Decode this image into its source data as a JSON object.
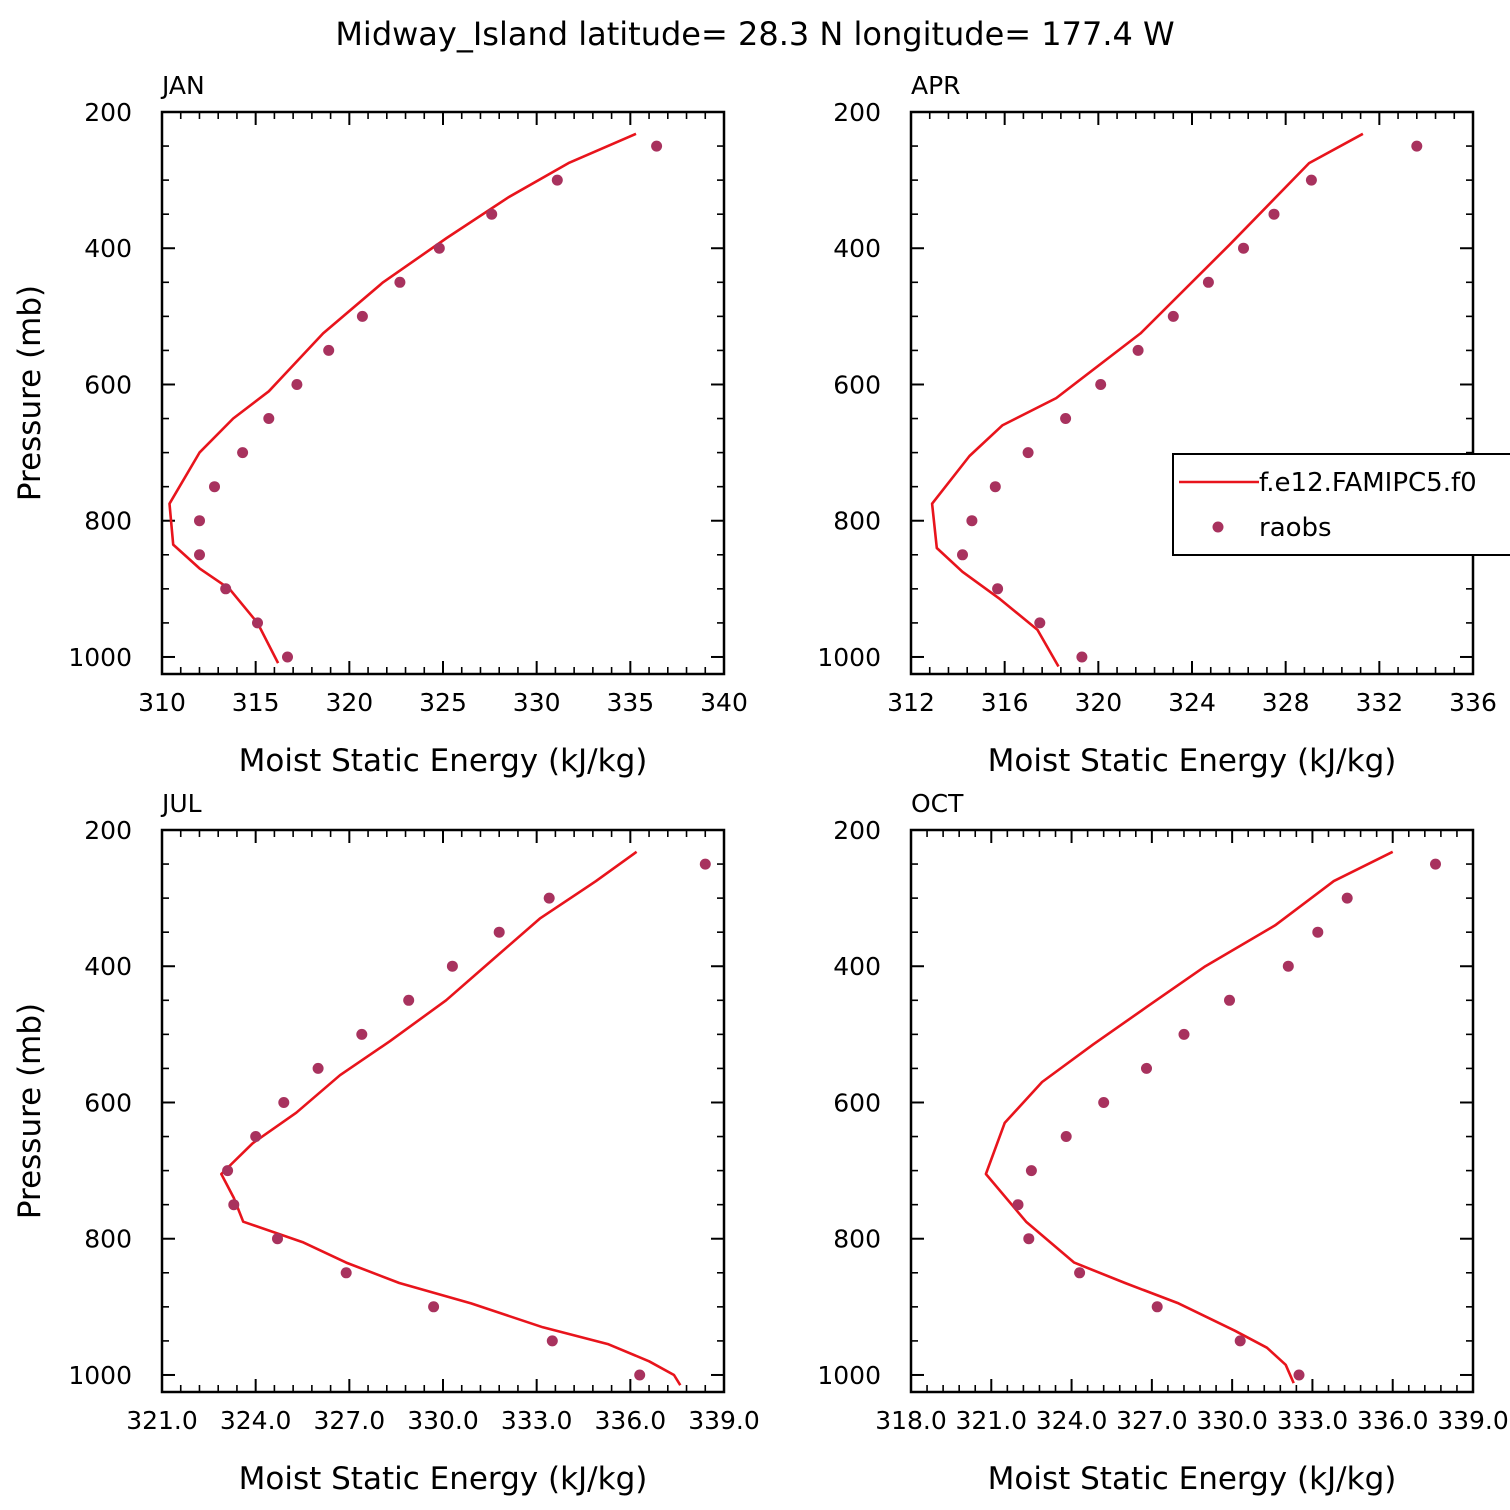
{
  "figure_title": "Midway_Island  latitude= 28.3 N longitude= 177.4 W",
  "colors": {
    "model_line": "#e8141c",
    "obs_marker": "#a8325e"
  },
  "legend": {
    "panel": "APR",
    "entries": [
      {
        "label": "f.e12.FAMIPC5.f0",
        "kind": "line"
      },
      {
        "label": "raobs",
        "kind": "marker"
      }
    ]
  },
  "chart_data": [
    {
      "type": "line",
      "title": "JAN",
      "xlabel": "Moist Static Energy (kJ/kg)",
      "ylabel": "Pressure (mb)",
      "xlim": [
        310,
        340
      ],
      "ylim": [
        1025,
        200
      ],
      "xticks": [
        310,
        315,
        320,
        325,
        330,
        335,
        340
      ],
      "xtick_labels": [
        "310",
        "315",
        "320",
        "325",
        "330",
        "335",
        "340"
      ],
      "yticks": [
        200,
        400,
        600,
        800,
        1000
      ],
      "ytick_labels": [
        "200",
        "400",
        "600",
        "800",
        "1000"
      ],
      "series": [
        {
          "kind": "line",
          "x": [
            335.3,
            331.7,
            328.5,
            325.2,
            321.8,
            318.6,
            315.7,
            313.8,
            312.0,
            310.4,
            310.6,
            312.0,
            313.6,
            315.1,
            316.2
          ],
          "y": [
            232,
            275,
            325,
            385,
            450,
            525,
            610,
            650,
            700,
            775,
            835,
            870,
            900,
            950,
            1009
          ]
        },
        {
          "kind": "scatter",
          "x": [
            336.4,
            331.1,
            327.6,
            324.8,
            322.7,
            320.7,
            318.9,
            317.2,
            315.7,
            314.3,
            312.8,
            312.0,
            312.0,
            313.4,
            315.1,
            316.7
          ],
          "y": [
            250,
            300,
            350,
            400,
            450,
            500,
            550,
            600,
            650,
            700,
            750,
            800,
            850,
            900,
            950,
            1000
          ]
        }
      ]
    },
    {
      "type": "line",
      "title": "APR",
      "xlabel": "Moist Static Energy (kJ/kg)",
      "ylabel": "",
      "xlim": [
        312,
        336
      ],
      "ylim": [
        1025,
        200
      ],
      "xticks": [
        312,
        316,
        320,
        324,
        328,
        332,
        336
      ],
      "xtick_labels": [
        "312",
        "316",
        "320",
        "324",
        "328",
        "332",
        "336"
      ],
      "yticks": [
        200,
        400,
        600,
        800,
        1000
      ],
      "ytick_labels": [
        "200",
        "400",
        "600",
        "800",
        "1000"
      ],
      "series": [
        {
          "kind": "line",
          "x": [
            331.3,
            329.0,
            325.6,
            321.8,
            318.2,
            315.9,
            314.5,
            312.9,
            313.1,
            314.2,
            315.8,
            317.4,
            318.3
          ],
          "y": [
            232,
            275,
            395,
            525,
            620,
            660,
            705,
            775,
            840,
            875,
            915,
            960,
            1014
          ]
        },
        {
          "kind": "scatter",
          "x": [
            333.6,
            329.1,
            327.5,
            326.2,
            324.7,
            323.2,
            321.7,
            320.1,
            318.6,
            317.0,
            315.6,
            314.6,
            314.2,
            315.7,
            317.5,
            319.3
          ],
          "y": [
            250,
            300,
            350,
            400,
            450,
            500,
            550,
            600,
            650,
            700,
            750,
            800,
            850,
            900,
            950,
            1000
          ]
        }
      ]
    },
    {
      "type": "line",
      "title": "JUL",
      "xlabel": "Moist Static Energy (kJ/kg)",
      "ylabel": "Pressure (mb)",
      "xlim": [
        321.0,
        339.0
      ],
      "ylim": [
        1025,
        200
      ],
      "xticks": [
        321,
        324,
        327,
        330,
        333,
        336,
        339
      ],
      "xtick_labels": [
        "321.0",
        "324.0",
        "327.0",
        "330.0",
        "333.0",
        "336.0",
        "339.0"
      ],
      "yticks": [
        200,
        400,
        600,
        800,
        1000
      ],
      "ytick_labels": [
        "200",
        "400",
        "600",
        "800",
        "1000"
      ],
      "series": [
        {
          "kind": "line",
          "x": [
            336.2,
            334.9,
            333.1,
            331.6,
            330.1,
            328.3,
            326.7,
            325.3,
            323.9,
            322.9,
            323.3,
            323.6,
            325.5,
            326.9,
            328.6,
            330.9,
            333.2,
            335.3,
            336.6,
            337.4,
            337.6
          ],
          "y": [
            232,
            275,
            330,
            390,
            450,
            510,
            560,
            615,
            660,
            705,
            740,
            775,
            805,
            835,
            865,
            895,
            930,
            955,
            980,
            1000,
            1015
          ]
        },
        {
          "kind": "scatter",
          "x": [
            338.4,
            333.4,
            331.8,
            330.3,
            328.9,
            327.4,
            326.0,
            324.9,
            324.0,
            323.1,
            323.3,
            324.7,
            326.9,
            329.7,
            333.5,
            336.3
          ],
          "y": [
            250,
            300,
            350,
            400,
            450,
            500,
            550,
            600,
            650,
            700,
            750,
            800,
            850,
            900,
            950,
            1000
          ]
        }
      ]
    },
    {
      "type": "line",
      "title": "OCT",
      "xlabel": "Moist Static Energy (kJ/kg)",
      "ylabel": "",
      "xlim": [
        318.0,
        339.0
      ],
      "ylim": [
        1025,
        200
      ],
      "xticks": [
        318,
        321,
        324,
        327,
        330,
        333,
        336,
        339
      ],
      "xtick_labels": [
        "318.0",
        "321.0",
        "324.0",
        "327.0",
        "330.0",
        "333.0",
        "336.0",
        "339.0"
      ],
      "yticks": [
        200,
        400,
        600,
        800,
        1000
      ],
      "ytick_labels": [
        "200",
        "400",
        "600",
        "800",
        "1000"
      ],
      "series": [
        {
          "kind": "line",
          "x": [
            336.0,
            333.8,
            331.6,
            329.0,
            326.8,
            324.8,
            322.9,
            321.5,
            320.8,
            322.3,
            324.1,
            326.0,
            328.0,
            330.1,
            331.3,
            332.0,
            332.3
          ],
          "y": [
            232,
            275,
            340,
            400,
            460,
            515,
            570,
            630,
            705,
            775,
            835,
            865,
            895,
            935,
            960,
            985,
            1012
          ]
        },
        {
          "kind": "scatter",
          "x": [
            337.6,
            334.3,
            333.2,
            332.1,
            329.9,
            328.2,
            326.8,
            325.2,
            323.8,
            322.5,
            322.0,
            322.4,
            324.3,
            327.2,
            330.3,
            332.5
          ],
          "y": [
            250,
            300,
            350,
            400,
            450,
            500,
            550,
            600,
            650,
            700,
            750,
            800,
            850,
            900,
            950,
            1000
          ]
        }
      ]
    }
  ]
}
